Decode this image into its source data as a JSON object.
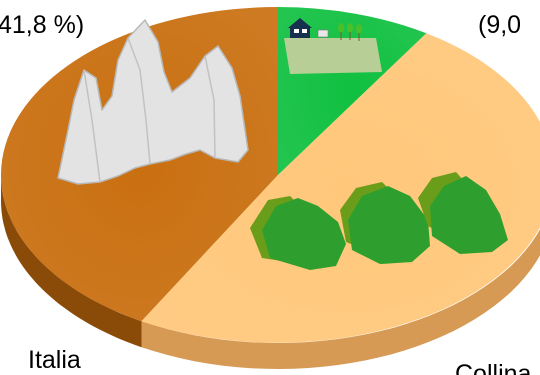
{
  "chart_data": {
    "type": "pie",
    "slices": [
      {
        "name": "Montagna",
        "value": 41.8,
        "value_label": "41,8 %)",
        "color": "#c96f10"
      },
      {
        "name": "Pianura",
        "value": 9.0,
        "value_label": "(9,0",
        "color": "#10c040"
      },
      {
        "name": "Collina",
        "value": 49.2,
        "label": "Collina",
        "color": "#ffc77a"
      }
    ],
    "texts": {
      "italia": "Italia"
    },
    "colors": {
      "montagna_side": "#8a4a08",
      "collina_side": "#d69a55",
      "pianura_side": "#0a8a30",
      "peaks": "#e3e3e3",
      "hills": "#2e9e2e",
      "hills_shadow": "#6a9e1a",
      "field": "#b7cf96"
    },
    "icons": [
      "mountain-peaks-icon",
      "green-hills-icon",
      "farm-field-icon"
    ]
  }
}
